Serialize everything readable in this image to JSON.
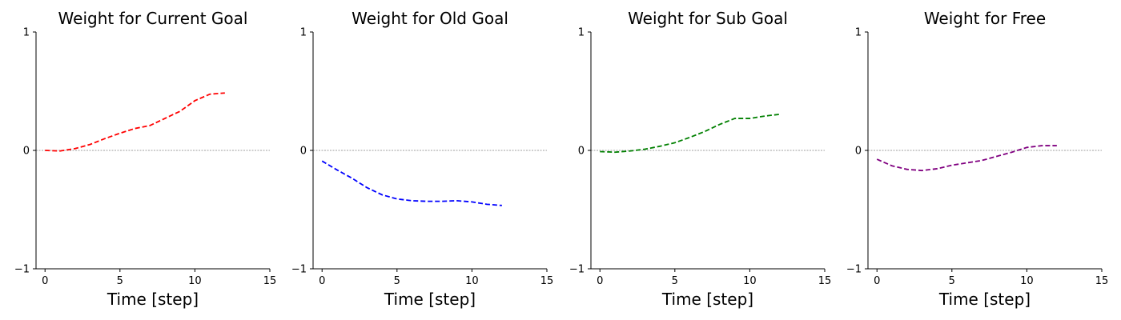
{
  "chart_data": [
    {
      "type": "line",
      "title": "Weight for Current Goal",
      "xlabel": "Time [step]",
      "ylabel": "",
      "xlim": [
        -0.6,
        15
      ],
      "ylim": [
        -1,
        1
      ],
      "xticks": [
        0,
        5,
        10,
        15
      ],
      "yticks": [
        -1,
        0,
        1
      ],
      "reference_line_y": 0,
      "series": [
        {
          "color": "#ff0000",
          "linestyle": "dashed",
          "x": [
            0,
            1,
            2,
            3,
            4,
            5,
            6,
            7,
            8,
            9,
            10,
            11,
            12
          ],
          "y": [
            0.0,
            -0.005,
            0.015,
            0.05,
            0.1,
            0.145,
            0.185,
            0.21,
            0.27,
            0.33,
            0.42,
            0.475,
            0.485
          ]
        }
      ]
    },
    {
      "type": "line",
      "title": "Weight for Old Goal",
      "xlabel": "Time [step]",
      "ylabel": "",
      "xlim": [
        -0.6,
        15
      ],
      "ylim": [
        -1,
        1
      ],
      "xticks": [
        0,
        5,
        10,
        15
      ],
      "yticks": [
        -1,
        0,
        1
      ],
      "reference_line_y": 0,
      "series": [
        {
          "color": "#0000ff",
          "linestyle": "dashed",
          "x": [
            0,
            1,
            2,
            3,
            4,
            5,
            6,
            7,
            8,
            9,
            10,
            11,
            12
          ],
          "y": [
            -0.09,
            -0.165,
            -0.235,
            -0.315,
            -0.375,
            -0.41,
            -0.425,
            -0.43,
            -0.43,
            -0.425,
            -0.435,
            -0.455,
            -0.465
          ]
        }
      ]
    },
    {
      "type": "line",
      "title": "Weight for Sub Goal",
      "xlabel": "Time [step]",
      "ylabel": "",
      "xlim": [
        -0.6,
        15
      ],
      "ylim": [
        -1,
        1
      ],
      "xticks": [
        0,
        5,
        10,
        15
      ],
      "yticks": [
        -1,
        0,
        1
      ],
      "reference_line_y": 0,
      "series": [
        {
          "color": "#008000",
          "linestyle": "dashed",
          "x": [
            0,
            1,
            2,
            3,
            4,
            5,
            6,
            7,
            8,
            9,
            10,
            11,
            12
          ],
          "y": [
            -0.01,
            -0.015,
            -0.005,
            0.01,
            0.035,
            0.065,
            0.11,
            0.16,
            0.22,
            0.27,
            0.27,
            0.29,
            0.305
          ]
        }
      ]
    },
    {
      "type": "line",
      "title": "Weight for Free",
      "xlabel": "Time [step]",
      "ylabel": "",
      "xlim": [
        -0.6,
        15
      ],
      "ylim": [
        -1,
        1
      ],
      "xticks": [
        0,
        5,
        10,
        15
      ],
      "yticks": [
        -1,
        0,
        1
      ],
      "reference_line_y": 0,
      "series": [
        {
          "color": "#800080",
          "linestyle": "dashed",
          "x": [
            0,
            1,
            2,
            3,
            4,
            5,
            6,
            7,
            8,
            9,
            10,
            11,
            12
          ],
          "y": [
            -0.075,
            -0.13,
            -0.16,
            -0.17,
            -0.155,
            -0.125,
            -0.105,
            -0.085,
            -0.05,
            -0.015,
            0.025,
            0.04,
            0.04
          ]
        }
      ]
    }
  ]
}
